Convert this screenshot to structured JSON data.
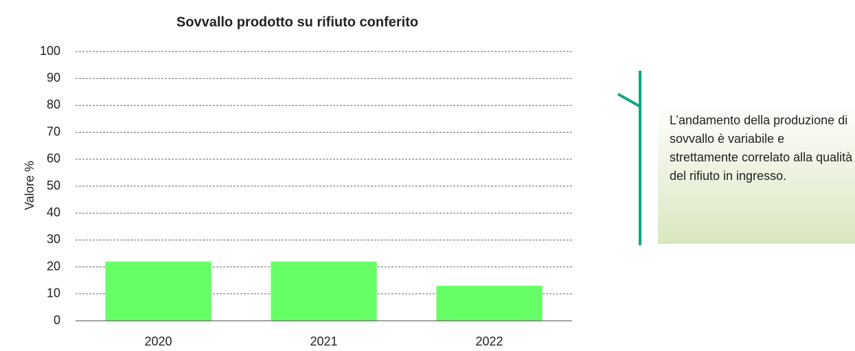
{
  "chart_data": {
    "type": "bar",
    "title": "Sovvallo prodotto su rifiuto conferito",
    "y_label": "Valore %",
    "categories": [
      "2020",
      "2021",
      "2022"
    ],
    "values": [
      22,
      22,
      13
    ],
    "color": "#66ff66",
    "ylim": [
      0,
      100
    ],
    "yticks": [
      0,
      10,
      20,
      30,
      40,
      50,
      60,
      70,
      80,
      90,
      100
    ],
    "grid": true,
    "annotation": "L’andamento della produzione di sovvallo è variabile e strettamente correlato alla qualità del rifiuto in ingresso."
  }
}
